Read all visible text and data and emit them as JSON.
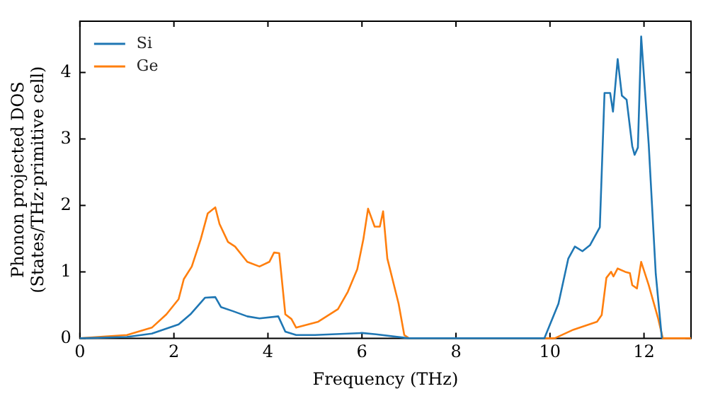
{
  "chart_data": {
    "type": "line",
    "xlabel": "Frequency (THz)",
    "ylabel": "Phonon projected DOS\n(States/THz·primitive cell)",
    "xlim": [
      0,
      13
    ],
    "xticks": [
      0,
      2,
      4,
      6,
      8,
      10,
      12
    ],
    "ylim": [
      0,
      4.77
    ],
    "yticks": [
      0,
      1,
      2,
      3,
      4
    ],
    "grid": false,
    "legend": "top left",
    "series": [
      {
        "name": "Si",
        "color": "#1f77b4",
        "x": [
          0,
          1.0,
          1.53,
          2.1,
          2.35,
          2.66,
          2.88,
          3.0,
          3.25,
          3.56,
          3.82,
          4.22,
          4.37,
          4.6,
          5.0,
          6.0,
          6.3,
          7.0,
          9.88,
          10.18,
          10.39,
          10.53,
          10.69,
          10.85,
          11.06,
          11.16,
          11.28,
          11.34,
          11.44,
          11.53,
          11.63,
          11.75,
          11.8,
          11.87,
          11.94,
          12.1,
          12.25,
          12.38
        ],
        "values": [
          0,
          0.02,
          0.07,
          0.21,
          0.36,
          0.61,
          0.62,
          0.47,
          0.41,
          0.33,
          0.3,
          0.33,
          0.1,
          0.05,
          0.05,
          0.08,
          0.06,
          0,
          0,
          0.52,
          1.2,
          1.38,
          1.31,
          1.4,
          1.67,
          3.69,
          3.69,
          3.41,
          4.2,
          3.65,
          3.59,
          2.89,
          2.76,
          2.87,
          4.54,
          2.92,
          0.97,
          0
        ]
      },
      {
        "name": "Ge",
        "color": "#ff7f0e",
        "x": [
          0,
          1.0,
          1.53,
          1.84,
          2.1,
          2.21,
          2.38,
          2.57,
          2.72,
          2.88,
          2.97,
          3.15,
          3.3,
          3.56,
          3.82,
          4.03,
          4.13,
          4.24,
          4.37,
          4.5,
          4.6,
          5.07,
          5.49,
          5.7,
          5.9,
          6.03,
          6.13,
          6.27,
          6.38,
          6.45,
          6.54,
          6.78,
          6.9,
          7.0,
          10.1,
          10.5,
          11.0,
          11.1,
          11.2,
          11.3,
          11.35,
          11.44,
          11.6,
          11.7,
          11.75,
          11.85,
          11.94,
          12.1,
          12.3,
          12.4,
          13
        ],
        "values": [
          0,
          0.05,
          0.16,
          0.36,
          0.59,
          0.89,
          1.08,
          1.49,
          1.88,
          1.97,
          1.72,
          1.45,
          1.38,
          1.15,
          1.08,
          1.15,
          1.29,
          1.28,
          0.36,
          0.29,
          0.16,
          0.25,
          0.44,
          0.7,
          1.04,
          1.49,
          1.95,
          1.68,
          1.68,
          1.91,
          1.2,
          0.52,
          0.05,
          0,
          0,
          0.13,
          0.25,
          0.35,
          0.91,
          1.0,
          0.93,
          1.05,
          1.0,
          0.98,
          0.8,
          0.75,
          1.15,
          0.8,
          0.3,
          0,
          0
        ]
      }
    ]
  }
}
